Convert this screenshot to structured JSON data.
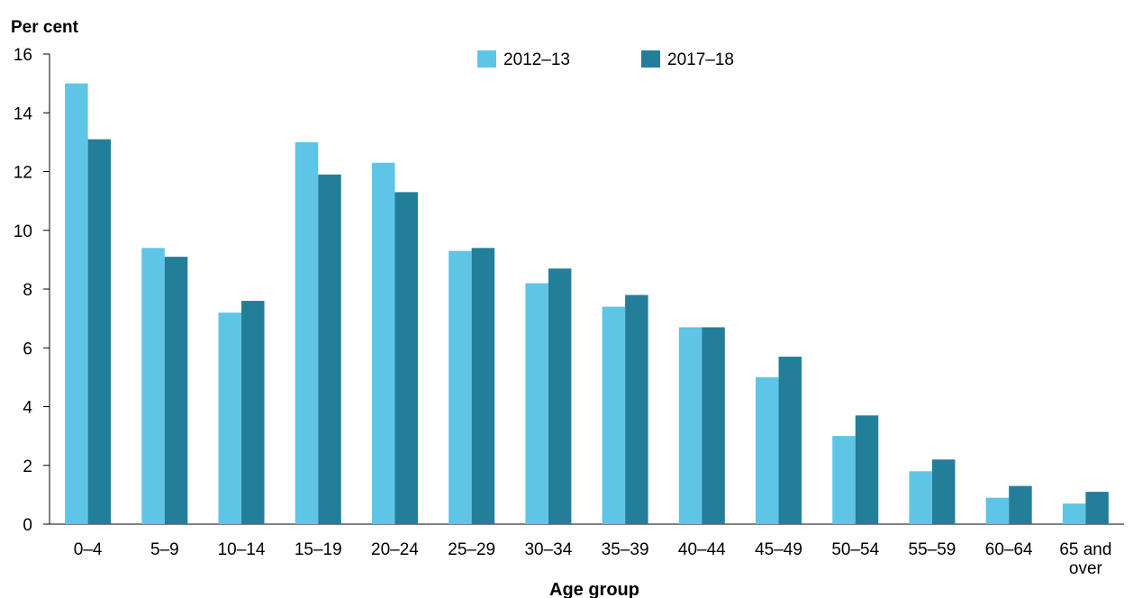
{
  "chart_data": {
    "type": "bar",
    "title": "",
    "ylabel": "Per cent",
    "xlabel": "Age group",
    "ylim": [
      0,
      16
    ],
    "yticks": [
      0,
      2,
      4,
      6,
      8,
      10,
      12,
      14,
      16
    ],
    "categories": [
      "0–4",
      "5–9",
      "10–14",
      "15–19",
      "20–24",
      "25–29",
      "30–34",
      "35–39",
      "40–44",
      "45–49",
      "50–54",
      "55–59",
      "60–64",
      "65 and over"
    ],
    "series": [
      {
        "name": "2012–13",
        "color": "#5EC5E6",
        "values": [
          15.0,
          9.4,
          7.2,
          13.0,
          12.3,
          9.3,
          8.2,
          7.4,
          6.7,
          5.0,
          3.0,
          1.8,
          0.9,
          0.7
        ]
      },
      {
        "name": "2017–18",
        "color": "#237F99",
        "values": [
          13.1,
          9.1,
          7.6,
          11.9,
          11.3,
          9.4,
          8.7,
          7.8,
          6.7,
          5.7,
          3.7,
          2.2,
          1.3,
          1.1
        ]
      }
    ],
    "grid": false,
    "legend": "top-center"
  }
}
